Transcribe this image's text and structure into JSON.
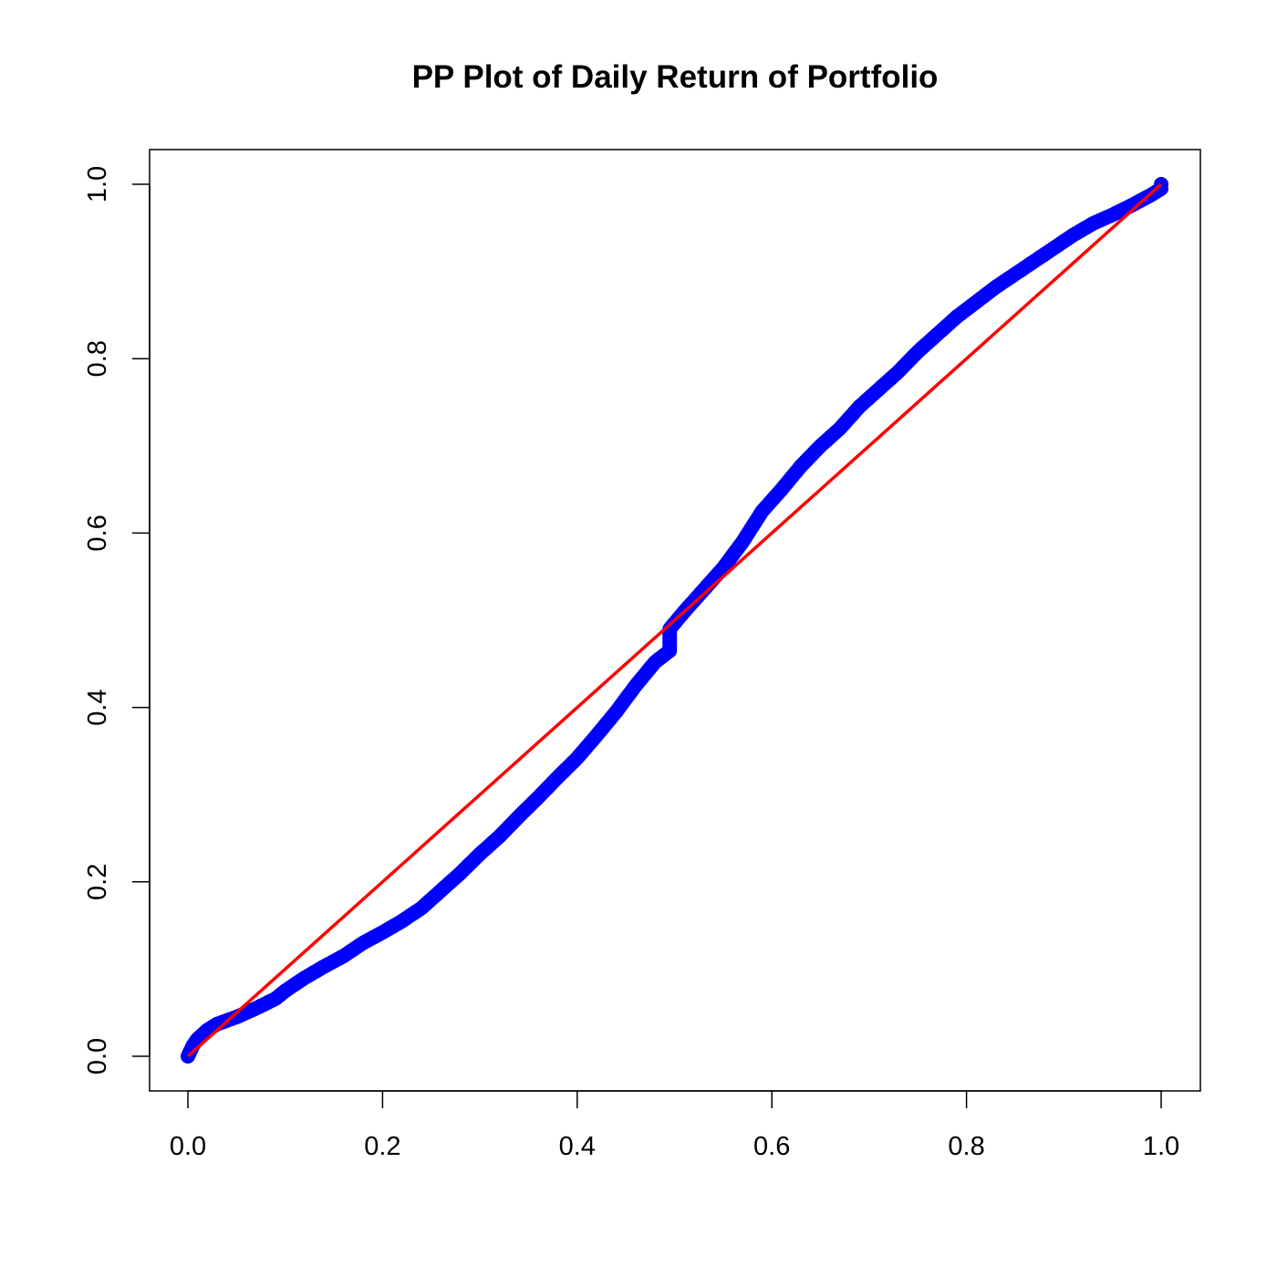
{
  "chart_data": {
    "type": "scatter",
    "title": "PP Plot of Daily Return of Portfolio",
    "xlabel": "",
    "ylabel": "",
    "xlim": [
      0,
      1
    ],
    "ylim": [
      0,
      1
    ],
    "x_ticks": [
      "0.0",
      "0.2",
      "0.4",
      "0.6",
      "0.8",
      "1.0"
    ],
    "y_ticks": [
      "0.0",
      "0.2",
      "0.4",
      "0.6",
      "0.8",
      "1.0"
    ],
    "grid": false,
    "legend": "none",
    "series": [
      {
        "marker": "filled-circle",
        "color": "#0000ff",
        "points": [
          [
            0.0,
            0.0
          ],
          [
            0.005,
            0.012
          ],
          [
            0.01,
            0.02
          ],
          [
            0.02,
            0.03
          ],
          [
            0.03,
            0.037
          ],
          [
            0.05,
            0.045
          ],
          [
            0.07,
            0.055
          ],
          [
            0.09,
            0.066
          ],
          [
            0.1,
            0.075
          ],
          [
            0.12,
            0.09
          ],
          [
            0.14,
            0.103
          ],
          [
            0.16,
            0.115
          ],
          [
            0.18,
            0.13
          ],
          [
            0.2,
            0.142
          ],
          [
            0.22,
            0.155
          ],
          [
            0.24,
            0.17
          ],
          [
            0.26,
            0.19
          ],
          [
            0.28,
            0.21
          ],
          [
            0.3,
            0.232
          ],
          [
            0.32,
            0.252
          ],
          [
            0.34,
            0.275
          ],
          [
            0.36,
            0.297
          ],
          [
            0.38,
            0.32
          ],
          [
            0.4,
            0.342
          ],
          [
            0.42,
            0.368
          ],
          [
            0.44,
            0.395
          ],
          [
            0.46,
            0.425
          ],
          [
            0.48,
            0.452
          ],
          [
            0.495,
            0.465
          ],
          [
            0.495,
            0.49
          ],
          [
            0.51,
            0.51
          ],
          [
            0.53,
            0.535
          ],
          [
            0.55,
            0.56
          ],
          [
            0.57,
            0.59
          ],
          [
            0.59,
            0.625
          ],
          [
            0.61,
            0.65
          ],
          [
            0.63,
            0.677
          ],
          [
            0.65,
            0.7
          ],
          [
            0.67,
            0.72
          ],
          [
            0.69,
            0.745
          ],
          [
            0.71,
            0.765
          ],
          [
            0.73,
            0.785
          ],
          [
            0.75,
            0.808
          ],
          [
            0.77,
            0.828
          ],
          [
            0.79,
            0.848
          ],
          [
            0.81,
            0.865
          ],
          [
            0.83,
            0.882
          ],
          [
            0.85,
            0.897
          ],
          [
            0.87,
            0.912
          ],
          [
            0.89,
            0.927
          ],
          [
            0.91,
            0.942
          ],
          [
            0.93,
            0.955
          ],
          [
            0.95,
            0.965
          ],
          [
            0.97,
            0.976
          ],
          [
            0.99,
            0.988
          ],
          [
            1.0,
            0.995
          ]
        ]
      }
    ],
    "reference_line": {
      "from": [
        0,
        0
      ],
      "to": [
        1,
        1
      ],
      "color": "#ff0000"
    }
  }
}
